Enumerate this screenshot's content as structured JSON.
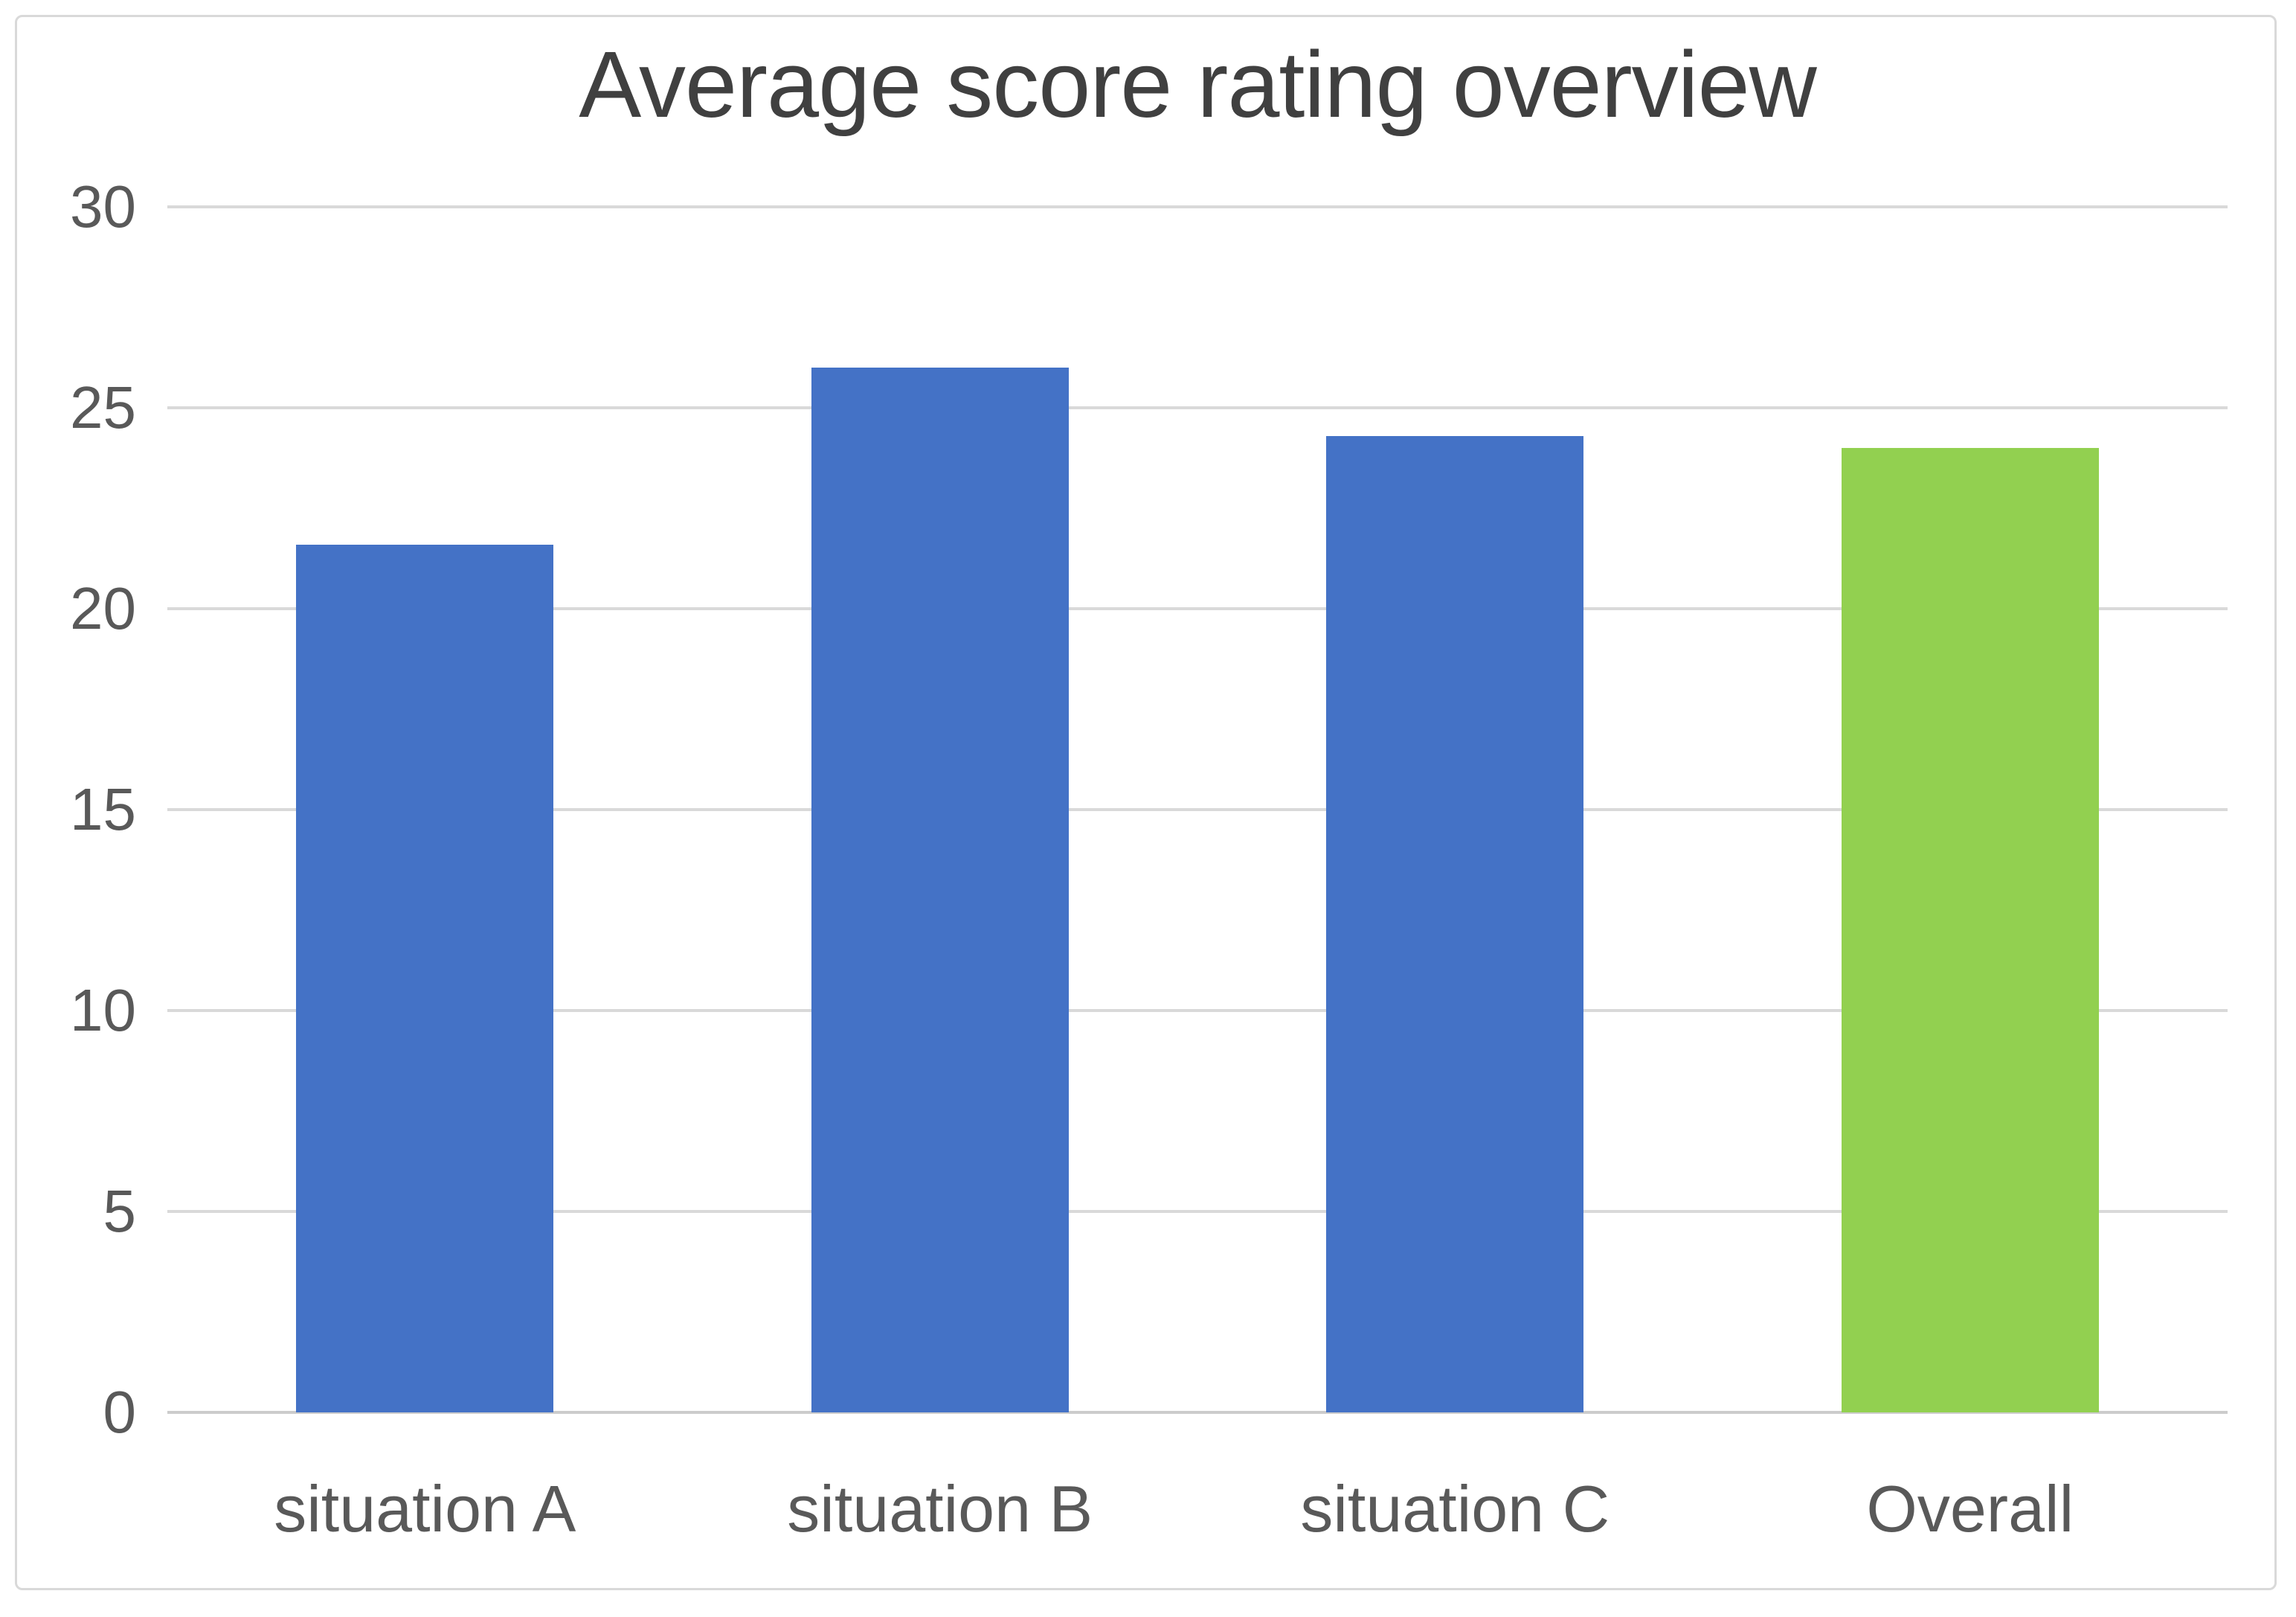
{
  "chart_data": {
    "type": "bar",
    "title": "Average score rating overview",
    "categories": [
      "situation A",
      "situation B",
      "situation C",
      "Overall"
    ],
    "values": [
      21.6,
      26.0,
      24.3,
      24.0
    ],
    "bar_colors": [
      "#4472C6",
      "#4472C6",
      "#4472C6",
      "#92D050"
    ],
    "xlabel": "",
    "ylabel": "",
    "ylim": [
      0,
      30
    ],
    "yticks": [
      0,
      5,
      10,
      15,
      20,
      25,
      30
    ],
    "grid": "horizontal",
    "legend": "none",
    "bar_width_fraction_of_slot": 0.5
  },
  "styles": {
    "bar_blue": "#4472C6",
    "bar_green": "#92D050",
    "gridline_color": "#D9D9D9",
    "zero_line_color": "#CCCCCC",
    "title_color": "#404040",
    "tick_label_color": "#595959",
    "frame_border_color": "#D9D9D9",
    "background": "#FFFFFF"
  }
}
